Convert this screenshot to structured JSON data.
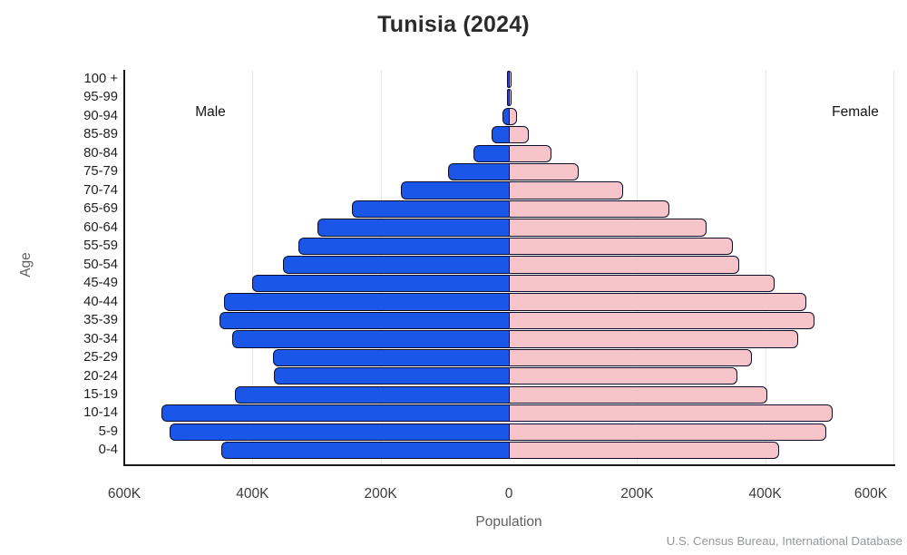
{
  "chart": {
    "title": "Tunisia (2024)",
    "y_axis_title": "Age",
    "x_axis_title": "Population",
    "male_annotation": "Male",
    "female_annotation": "Female",
    "source": "U.S. Census Bureau, International Database"
  },
  "chart_data": {
    "type": "bar",
    "subtype": "population_pyramid",
    "title": "Tunisia (2024)",
    "xlabel": "Population",
    "ylabel": "Age",
    "left_side_label": "Male",
    "right_side_label": "Female",
    "categories_top_to_bottom": [
      "100 +",
      "95-99",
      "90-94",
      "85-89",
      "80-84",
      "75-79",
      "70-74",
      "65-69",
      "60-64",
      "55-59",
      "50-54",
      "45-49",
      "40-44",
      "35-39",
      "30-34",
      "25-29",
      "20-24",
      "15-19",
      "10-14",
      "5-9",
      "0-4"
    ],
    "series": [
      {
        "name": "Male",
        "side": "left",
        "color": "#1a57e8",
        "values_thousands": [
          1,
          3,
          10,
          27,
          55,
          95,
          169,
          245,
          299,
          328,
          352,
          400,
          444,
          452,
          431,
          368,
          366,
          427,
          542,
          529,
          448
        ]
      },
      {
        "name": "Female",
        "side": "right",
        "color": "#f6c4c9",
        "values_thousands": [
          1,
          4,
          13,
          31,
          67,
          109,
          179,
          250,
          308,
          349,
          360,
          414,
          464,
          477,
          452,
          379,
          357,
          403,
          505,
          495,
          421
        ]
      }
    ],
    "x_ticks": [
      {
        "label": "600K",
        "value_thousands": -600
      },
      {
        "label": "400K",
        "value_thousands": -400
      },
      {
        "label": "200K",
        "value_thousands": -200
      },
      {
        "label": "0",
        "value_thousands": 0
      },
      {
        "label": "200K",
        "value_thousands": 200
      },
      {
        "label": "400K",
        "value_thousands": 400
      },
      {
        "label": "600K",
        "value_thousands": 600
      }
    ],
    "xlim_thousands": [
      -600,
      600
    ],
    "grid": true,
    "legend_position": "none",
    "colors": {
      "male_fill": "#1a57e8",
      "female_fill": "#f6c4c9",
      "bar_border": "#0d0d2b",
      "axis_line": "#1b1b1b",
      "gridline": "#e9e9e9",
      "title_text": "#2b2b2b",
      "tick_text": "#3c3c3c",
      "axis_title_text": "#606060",
      "source_text": "#94979c"
    },
    "source": "U.S. Census Bureau, International Database"
  }
}
